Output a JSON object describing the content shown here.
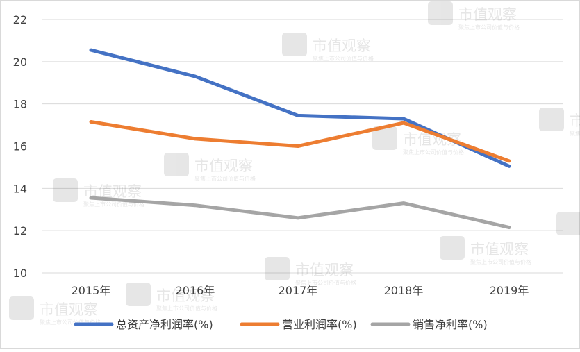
{
  "chart_data": {
    "type": "line",
    "categories": [
      "2015年",
      "2016年",
      "2017年",
      "2018年",
      "2019年"
    ],
    "series": [
      {
        "name": "总资产净利润率(%)",
        "color": "#4472c4",
        "values": [
          20.55,
          19.3,
          17.45,
          17.3,
          15.05
        ]
      },
      {
        "name": "营业利润率(%)",
        "color": "#ed7d31",
        "values": [
          17.15,
          16.35,
          16.0,
          17.1,
          15.3
        ]
      },
      {
        "name": "销售净利率(%)",
        "color": "#a5a5a5",
        "values": [
          13.55,
          13.2,
          12.6,
          13.3,
          12.15
        ]
      }
    ],
    "ylim": [
      10,
      22
    ],
    "yticks": [
      10,
      12,
      14,
      16,
      18,
      20,
      22
    ],
    "grid": true,
    "legend_position": "bottom"
  },
  "watermark": {
    "title": "市值观察",
    "subtitle": "聚焦上市公司价值与价格"
  }
}
